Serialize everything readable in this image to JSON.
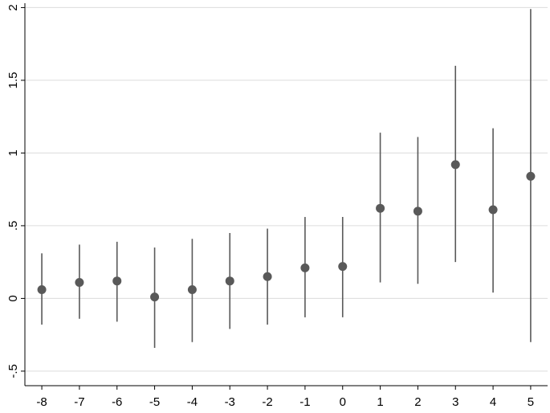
{
  "colors": {
    "marker": "#595959",
    "grid": "#dcdcdc",
    "axis": "#000000",
    "background": "#ffffff"
  },
  "chart_data": {
    "type": "scatter",
    "title": "",
    "xlabel": "",
    "ylabel": "",
    "x": [
      -8,
      -7,
      -6,
      -5,
      -4,
      -3,
      -2,
      -1,
      0,
      1,
      2,
      3,
      4,
      5
    ],
    "x_tick_labels": [
      "-8",
      "-7",
      "-6",
      "-5",
      "-4",
      "-3",
      "-2",
      "-1",
      "0",
      "1",
      "2",
      "3",
      "4",
      "5"
    ],
    "y_ticks": [
      -0.5,
      0,
      0.5,
      1,
      1.5,
      2
    ],
    "y_tick_labels": [
      "-.5",
      "0",
      ".5",
      "1",
      "1.5",
      "2"
    ],
    "xlim": [
      -8.45,
      5.45
    ],
    "ylim": [
      -0.6,
      2.03
    ],
    "grid": true,
    "legend": "none",
    "series": [
      {
        "values": [
          0.06,
          0.11,
          0.12,
          0.01,
          0.06,
          0.12,
          0.15,
          0.21,
          0.22,
          0.62,
          0.6,
          0.92,
          0.61,
          0.84
        ],
        "lower": [
          -0.18,
          -0.14,
          -0.16,
          -0.34,
          -0.3,
          -0.21,
          -0.18,
          -0.13,
          -0.13,
          0.11,
          0.1,
          0.25,
          0.04,
          -0.3
        ],
        "upper": [
          0.31,
          0.37,
          0.39,
          0.35,
          0.41,
          0.45,
          0.48,
          0.56,
          0.56,
          1.14,
          1.11,
          1.6,
          1.17,
          1.99
        ]
      }
    ]
  }
}
